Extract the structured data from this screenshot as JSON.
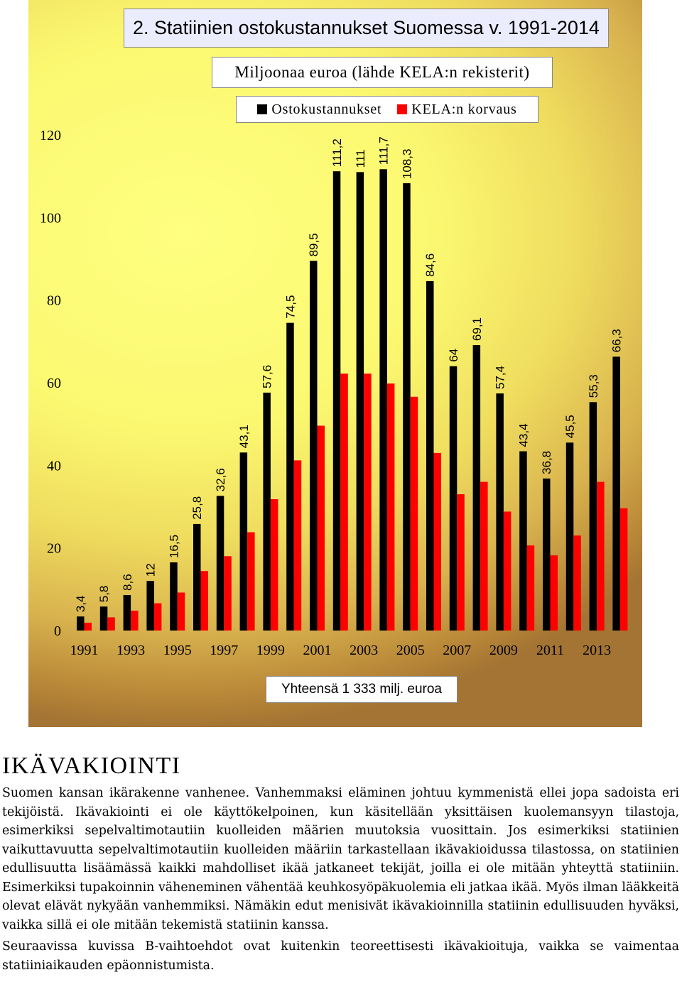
{
  "chart_data": {
    "type": "bar",
    "title": "2. Statiinien ostokustannukset Suomessa v. 1991-2014",
    "subtitle": "Miljoonaa euroa (lähde KELA:n rekisterit)",
    "ylim": [
      0,
      120
    ],
    "yticks": [
      0,
      20,
      40,
      60,
      80,
      100,
      120
    ],
    "grid": false,
    "legend_position": "top",
    "categories": [
      "1991",
      "1992",
      "1993",
      "1994",
      "1995",
      "1996",
      "1997",
      "1998",
      "1999",
      "2000",
      "2001",
      "2002",
      "2003",
      "2004",
      "2005",
      "2006",
      "2007",
      "2008",
      "2009",
      "2010",
      "2011",
      "2012",
      "2013",
      "2014"
    ],
    "xtick_labels": [
      "1991",
      "1993",
      "1995",
      "1997",
      "1999",
      "2001",
      "2003",
      "2005",
      "2007",
      "2009",
      "2011",
      "2013"
    ],
    "series": [
      {
        "name": "Ostokustannukset",
        "color": "#000000",
        "values": [
          3.4,
          5.8,
          8.6,
          12,
          16.5,
          25.8,
          32.6,
          43.1,
          57.6,
          74.5,
          89.5,
          111.2,
          111,
          111.7,
          108.3,
          84.6,
          64,
          69.1,
          57.4,
          43.4,
          36.8,
          45.5,
          55.3,
          66.3
        ],
        "labels": [
          "3,4",
          "5,8",
          "8,6",
          "12",
          "16,5",
          "25,8",
          "32,6",
          "43,1",
          "57,6",
          "74,5",
          "89,5",
          "111,2",
          "111",
          "111,7",
          "108,3",
          "84,6",
          "64",
          "69,1",
          "57,4",
          "43,4",
          "36,8",
          "45,5",
          "55,3",
          "66,3"
        ]
      },
      {
        "name": "KELA:n korvaus",
        "color": "#ff0000",
        "values": [
          1.9,
          3.2,
          4.8,
          6.6,
          9.2,
          14.4,
          18,
          23.8,
          31.8,
          41.2,
          49.6,
          62.2,
          62.2,
          59.8,
          56.6,
          43,
          33,
          36,
          28.8,
          20.6,
          18.2,
          23,
          36,
          29.6
        ]
      }
    ],
    "annotation": "Yhteensä 1 333 milj. euroa"
  },
  "article": {
    "heading": "IKÄVAKIOINTI",
    "paragraphs": [
      "Suomen kansan ikärakenne vanhenee. Vanhemmaksi eläminen johtuu kymmenistä ellei jopa sadoista eri tekijöistä. Ikävakiointi ei ole käyttökelpoinen, kun käsitellään yksittäisen kuolemansyyn tilastoja, esimerkiksi sepelvaltimotautiin kuolleiden määrien muutoksia vuosittain. Jos esimerkiksi statiinien vaikuttavuutta sepelvaltimotautiin kuolleiden määriin tarkastellaan ikävakioidussa tilastossa, on statiinien edullisuutta lisäämässä kaikki mahdolliset ikää jatkaneet tekijät, joilla ei ole mitään yhteyttä statiiniin. Esimerkiksi tupakoinnin väheneminen vähentää keuhkosyöpäkuolemia eli jatkaa ikää. Myös ilman lääkkeitä olevat elävät nykyään vanhemmiksi. Nämäkin edut menisivät ikävakioinnilla statiinin edullisuuden hyväksi, vaikka sillä ei ole mitään tekemistä statiinin kanssa.",
      "Seuraavissa kuvissa B-vaihtoehdot ovat kuitenkin teoreettisesti ikävakioituja, vaikka se vaimentaa statiiniaikauden epäonnistumista."
    ]
  }
}
